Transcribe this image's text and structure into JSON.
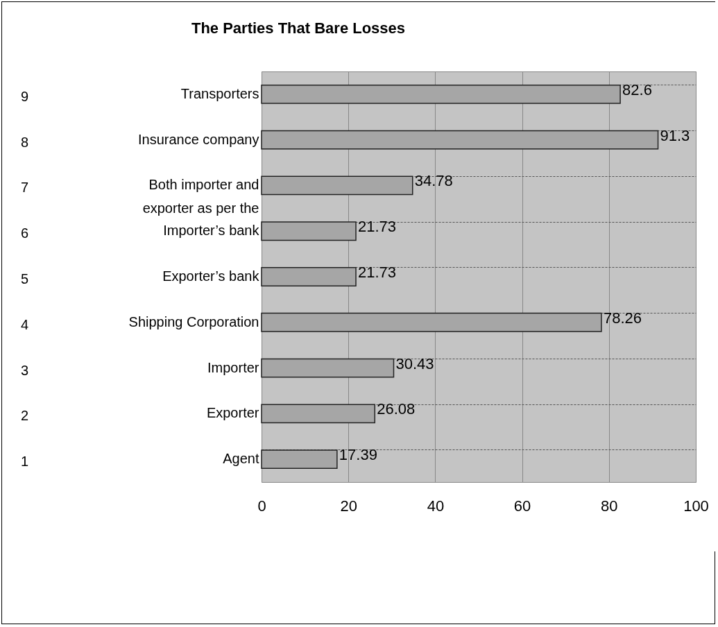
{
  "chart_data": {
    "type": "bar",
    "orientation": "horizontal",
    "title": "The Parties That Bare Losses",
    "categories": [
      "Transporters",
      "Insurance company",
      "Both importer and exporter as per the",
      "Importer’s bank",
      "Exporter’s bank",
      "Shipping Corporation",
      "Importer",
      "Exporter",
      "Agent"
    ],
    "values": [
      82.6,
      91.3,
      34.78,
      21.73,
      21.73,
      78.26,
      30.43,
      26.08,
      17.39
    ],
    "color": "#a6a6a6",
    "annotations": [
      "9",
      "8",
      "7",
      "6",
      "5",
      "4",
      "3",
      "2",
      "1"
    ],
    "xlim": [
      0,
      100
    ],
    "xticks": [
      0,
      20,
      40,
      60,
      80,
      100
    ],
    "grid": true,
    "data_labels": true
  }
}
